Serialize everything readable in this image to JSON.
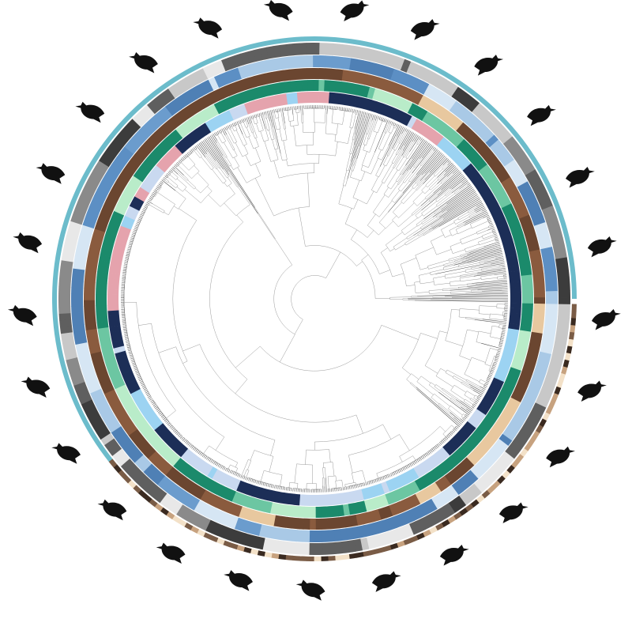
{
  "figure": {
    "title": "",
    "tree": {
      "tips": 720,
      "branch_color": "#2b2b2b"
    },
    "rings": [
      {
        "name": "clade-ring",
        "palette": [
          "#1c2e57",
          "#9cd3f2",
          "#e5a3ad",
          "#1c2e57",
          "#c9d9f0"
        ]
      },
      {
        "name": "habitat-ring",
        "palette": [
          "#1b8a6b",
          "#1b8a6b",
          "#1b8a6b",
          "#b9ecc9",
          "#6cc6a2"
        ]
      },
      {
        "name": "trait-ring",
        "palette": [
          "#6b4630",
          "#6b4630",
          "#6b4630",
          "#e8c89f",
          "#8a5b3e"
        ]
      },
      {
        "name": "range-ring",
        "palette": [
          "#4f80b5",
          "#a9c9e6",
          "#6b9ccd",
          "#d6e6f4",
          "#5c8fc4"
        ]
      },
      {
        "name": "grey-ring",
        "palette": [
          "#3c3c3c",
          "#8a8a8a",
          "#c8c8c8",
          "#5f5f5f",
          "#e8e8e8"
        ]
      }
    ],
    "outer_bands": [
      {
        "name": "passerine-band",
        "color": "#6cbccb"
      },
      {
        "name": "nonpasserine-band",
        "palette": [
          "#3a2a20",
          "#c7a27f",
          "#f3e1c8",
          "#7a5c46"
        ]
      }
    ],
    "silhouettes": [
      {
        "name": "sparrow-silhouette-icon"
      },
      {
        "name": "wren-silhouette-icon"
      },
      {
        "name": "tanager-silhouette-icon"
      },
      {
        "name": "warbler-silhouette-icon"
      },
      {
        "name": "crow-silhouette-icon"
      },
      {
        "name": "dodo-silhouette-icon"
      },
      {
        "name": "goose-silhouette-icon"
      },
      {
        "name": "rooster-silhouette-icon"
      },
      {
        "name": "nightjar-silhouette-icon"
      },
      {
        "name": "hummingbird-silhouette-icon"
      },
      {
        "name": "pigeon-silhouette-icon"
      },
      {
        "name": "crane-silhouette-icon"
      },
      {
        "name": "ibis-silhouette-icon"
      },
      {
        "name": "shorebird-silhouette-icon"
      },
      {
        "name": "eagle-silhouette-icon"
      },
      {
        "name": "owl-silhouette-icon"
      },
      {
        "name": "kingfisher-silhouette-icon"
      },
      {
        "name": "woodpecker-silhouette-icon"
      },
      {
        "name": "parrot-silhouette-icon"
      },
      {
        "name": "perching-bird-silhouette-icon"
      },
      {
        "name": "finch-silhouette-icon"
      },
      {
        "name": "thrush-silhouette-icon"
      },
      {
        "name": "flycatcher-silhouette-icon"
      },
      {
        "name": "lyrebird-silhouette-icon"
      },
      {
        "name": "swallow-silhouette-icon"
      }
    ]
  }
}
